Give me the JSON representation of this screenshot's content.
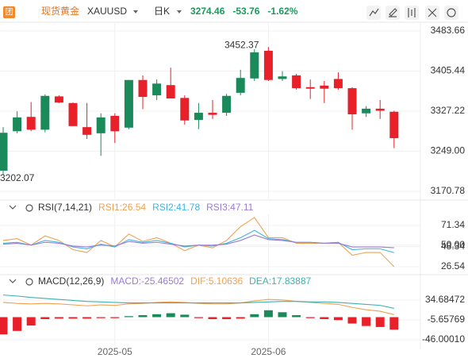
{
  "header": {
    "symbol_name": "现货黄金",
    "symbol": "XAUUSD",
    "period": "日K",
    "price": 3274.46,
    "change": -53.76,
    "change_pct": {
      "value": -1.62,
      "label": "-1.62%"
    },
    "color": "#1a9a5c"
  },
  "chart_data": [
    {
      "type": "candlestick",
      "categories": [
        null,
        null,
        null,
        null,
        null,
        null,
        null,
        null,
        "2025-05",
        null,
        null,
        null,
        null,
        null,
        null,
        null,
        null,
        null,
        null,
        "2025-06",
        null,
        null,
        null,
        null,
        null,
        null,
        null,
        null,
        null
      ],
      "open": [
        3211,
        3288,
        3316,
        3291,
        3356,
        3343,
        3296,
        3284,
        3318,
        3295,
        3388,
        3358,
        3378,
        3353,
        3310,
        3324,
        3324,
        3363,
        3391,
        3445,
        3390,
        3397,
        3374,
        3377,
        3390,
        3372,
        3323,
        3332,
        3326
      ],
      "high": [
        3296,
        3327,
        3345,
        3360,
        3358,
        3344,
        3343,
        3323,
        3323,
        3388,
        3397,
        3389,
        3412,
        3358,
        3343,
        3349,
        3361,
        3408,
        3448,
        3452.37,
        3405,
        3400,
        3389,
        3386,
        3403,
        3374,
        3337,
        3349,
        3328
      ],
      "low": [
        3202.07,
        3284,
        3288,
        3286,
        3343,
        3298,
        3273,
        3240,
        3265,
        3292,
        3331,
        3349,
        3352,
        3301,
        3292,
        3312,
        3318,
        3358,
        3386,
        3386,
        3386,
        3369,
        3351,
        3343,
        3369,
        3291,
        3316,
        3312,
        3255
      ],
      "close": [
        3285,
        3315,
        3291,
        3357,
        3344,
        3298,
        3281,
        3315,
        3288,
        3388,
        3355,
        3381,
        3352,
        3309,
        3324,
        3320,
        3357,
        3392,
        3442,
        3388,
        3395,
        3372,
        3371,
        3371,
        3372,
        3321,
        3332,
        3328,
        3274.46
      ],
      "up_color": "#1a8a5a",
      "down_color": "#e8202a",
      "ylim": [
        3156.8,
        3500.7
      ],
      "yticks": [
        3483.66,
        3405.44,
        3327.22,
        {
          "value": 3249,
          "label": "3249.00"
        },
        3170.78
      ],
      "annotations": [
        "3452.37",
        "3202.07"
      ],
      "grid": true
    },
    {
      "type": "line",
      "title": "RSI(7,14,21)",
      "series": [
        {
          "name": "RSI1:26.54",
          "color": "#f0a050",
          "values": [
            55,
            57,
            50,
            60,
            55,
            45,
            42,
            55,
            48,
            62,
            54,
            58,
            52,
            44,
            50,
            47,
            55,
            70,
            80,
            58,
            58,
            52,
            52,
            52,
            53,
            39,
            42,
            42,
            26.54
          ]
        },
        {
          "name": "RSI2:41.78",
          "color": "#3fb4e0",
          "values": [
            52,
            53,
            50,
            55,
            53,
            48,
            46,
            51,
            48,
            56,
            53,
            55,
            52,
            48,
            50,
            49,
            52,
            58,
            66,
            57,
            56,
            53,
            53,
            52,
            53,
            45,
            46,
            46,
            41.78
          ]
        },
        {
          "name": "RSI3:47.11",
          "color": "#9b7bd6",
          "values": [
            51,
            52,
            50,
            53,
            52,
            49,
            48,
            50,
            49,
            54,
            52,
            53,
            51,
            49,
            50,
            50,
            51,
            55,
            61,
            56,
            55,
            53,
            53,
            52,
            52,
            48,
            48,
            48,
            47.11
          ]
        }
      ],
      "ylim": [
        19.6,
        83.4
      ],
      "yticks": [
        71.34,
        {
          "value": 50,
          "label": "50.00"
        },
        48.34,
        26.54
      ],
      "grid": true
    },
    {
      "type": "macd",
      "title": "MACD(12,26,9)",
      "series": [
        {
          "name": "MACD:-25.46502",
          "color": "#9b7bd6",
          "values": [
            -35,
            -28,
            -17,
            -4,
            -3,
            -3,
            -3,
            -2,
            -2,
            2,
            4,
            6,
            8,
            5,
            -2,
            -4,
            -4,
            -3,
            6,
            14,
            10,
            4,
            -2,
            -4,
            -6,
            -13,
            -18,
            -20,
            -25.46502
          ]
        },
        {
          "name": "DIF:5.10636",
          "color": "#f0a050",
          "values": [
            30,
            28,
            27,
            28,
            27,
            25,
            23,
            25,
            24,
            27,
            28,
            30,
            31,
            30,
            28,
            27,
            27,
            29,
            33,
            36,
            35,
            32,
            30,
            28,
            26,
            20,
            15,
            12,
            5.10636
          ]
        },
        {
          "name": "DEA:17.83887",
          "color": "#3fb0b0",
          "values": [
            45,
            43,
            40,
            38,
            36,
            34,
            32,
            31,
            30,
            29,
            29,
            29,
            29,
            29,
            29,
            29,
            29,
            29,
            30,
            31,
            32,
            32,
            31,
            31,
            30,
            28,
            26,
            24,
            17.83887
          ]
        }
      ],
      "up_color": "#1a8a5a",
      "down_color": "#e8202a",
      "ylim": [
        -58.9,
        57.3
      ],
      "yticks": [
        34.68472,
        -5.65769,
        {
          "value": -46.0001,
          "label": "-46.00010"
        }
      ],
      "grid": true
    }
  ]
}
